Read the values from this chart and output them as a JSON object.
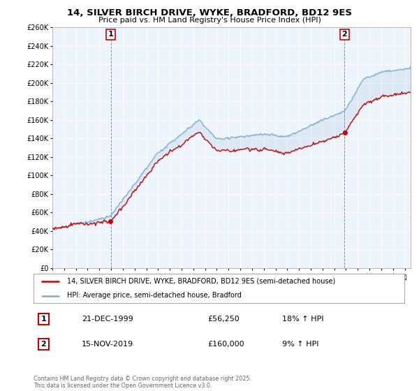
{
  "title": "14, SILVER BIRCH DRIVE, WYKE, BRADFORD, BD12 9ES",
  "subtitle": "Price paid vs. HM Land Registry's House Price Index (HPI)",
  "legend_line1": "14, SILVER BIRCH DRIVE, WYKE, BRADFORD, BD12 9ES (semi-detached house)",
  "legend_line2": "HPI: Average price, semi-detached house, Bradford",
  "annotation1_label": "1",
  "annotation1_date": "21-DEC-1999",
  "annotation1_price": "£56,250",
  "annotation1_hpi": "18% ↑ HPI",
  "annotation2_label": "2",
  "annotation2_date": "15-NOV-2019",
  "annotation2_price": "£160,000",
  "annotation2_hpi": "9% ↑ HPI",
  "footer": "Contains HM Land Registry data © Crown copyright and database right 2025.\nThis data is licensed under the Open Government Licence v3.0.",
  "ylim": [
    0,
    260000
  ],
  "xlim_start": 1995,
  "xlim_end": 2025.5,
  "red_color": "#cc0000",
  "blue_color": "#7bafd4",
  "blue_fill": "#ddeeff",
  "sale1_x": 1999.97,
  "sale1_y": 56250,
  "sale2_x": 2019.88,
  "sale2_y": 160000,
  "background_color": "#ffffff",
  "plot_bg_color": "#eef4fb",
  "grid_color": "#ffffff"
}
